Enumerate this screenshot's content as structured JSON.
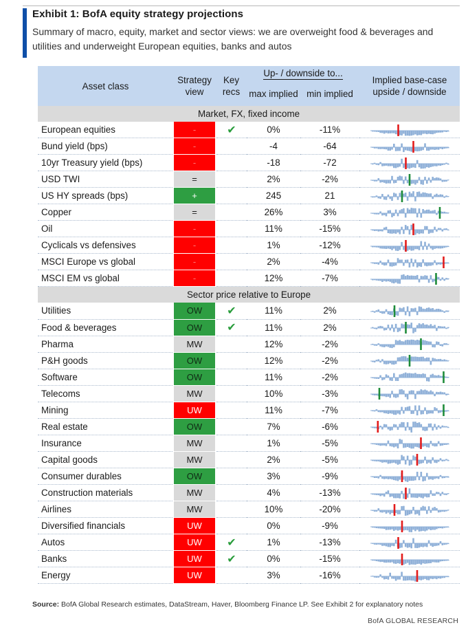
{
  "exhibit": {
    "title": "Exhibit 1: BofA equity strategy projections",
    "subtitle": "Summary of macro, equity, market and sector views: we are overweight food & beverages and utilities and underweight European equities, banks and autos"
  },
  "table": {
    "headers": {
      "asset_class": "Asset class",
      "strategy_view": "Strategy view",
      "key_recs": "Key recs",
      "up_downside": "Up- / downside to...",
      "max_implied": "max implied",
      "min_implied": "min implied",
      "implied_base": "Implied base-case upside / downside"
    },
    "sections": [
      {
        "title": "Market, FX, fixed income",
        "rows": [
          {
            "name": "European equities",
            "view": "-",
            "style": "red",
            "key": "✔",
            "max": "0%",
            "min": "-11%",
            "spark": {
              "up": 0,
              "down": 11,
              "marker": 0.35,
              "tone": "neg"
            }
          },
          {
            "name": "Bund yield (bps)",
            "view": "-",
            "style": "red",
            "key": "",
            "max": "-4",
            "min": "-64",
            "spark": {
              "up": 4,
              "down": 64,
              "marker": 0.55,
              "tone": "neg"
            }
          },
          {
            "name": "10yr Treasury yield (bps)",
            "view": "-",
            "style": "red",
            "key": "",
            "max": "-18",
            "min": "-72",
            "spark": {
              "up": 18,
              "down": 72,
              "marker": 0.45,
              "tone": "neg"
            }
          },
          {
            "name": "USD TWI",
            "view": "=",
            "style": "grey",
            "key": "",
            "max": "2%",
            "min": "-2%",
            "spark": {
              "up": 2,
              "down": 2,
              "marker": 0.5,
              "tone": "pos"
            }
          },
          {
            "name": "US HY spreads (bps)",
            "view": "+",
            "style": "green",
            "key": "",
            "max": "245",
            "min": "21",
            "spark": {
              "up": 245,
              "down": 21,
              "marker": 0.4,
              "tone": "pos"
            }
          },
          {
            "name": "Copper",
            "view": "=",
            "style": "grey",
            "key": "",
            "max": "26%",
            "min": "3%",
            "spark": {
              "up": 26,
              "down": 3,
              "marker": 0.9,
              "tone": "pos"
            }
          },
          {
            "name": "Oil",
            "view": "-",
            "style": "red",
            "key": "",
            "max": "11%",
            "min": "-15%",
            "spark": {
              "up": 11,
              "down": 15,
              "marker": 0.55,
              "tone": "neg"
            }
          },
          {
            "name": "Cyclicals vs defensives",
            "view": "-",
            "style": "red",
            "key": "",
            "max": "1%",
            "min": "-12%",
            "spark": {
              "up": 1,
              "down": 12,
              "marker": 0.45,
              "tone": "neg"
            }
          },
          {
            "name": "MSCI Europe vs global",
            "view": "-",
            "style": "red",
            "key": "",
            "max": "2%",
            "min": "-4%",
            "spark": {
              "up": 2,
              "down": 4,
              "marker": 0.95,
              "tone": "neg"
            }
          },
          {
            "name": "MSCI EM vs global",
            "view": "-",
            "style": "red",
            "key": "",
            "max": "12%",
            "min": "-7%",
            "spark": {
              "up": 12,
              "down": 7,
              "marker": 0.85,
              "tone": "pos"
            }
          }
        ]
      },
      {
        "title": "Sector price relative to Europe",
        "rows": [
          {
            "name": "Utilities",
            "view": "OW",
            "style": "ow",
            "key": "✔",
            "max": "11%",
            "min": "2%",
            "spark": {
              "up": 11,
              "down": 2,
              "marker": 0.3,
              "tone": "pos"
            }
          },
          {
            "name": "Food & beverages",
            "view": "OW",
            "style": "ow",
            "key": "✔",
            "max": "11%",
            "min": "2%",
            "spark": {
              "up": 11,
              "down": 2,
              "marker": 0.45,
              "tone": "pos"
            }
          },
          {
            "name": "Pharma",
            "view": "MW",
            "style": "grey",
            "key": "",
            "max": "12%",
            "min": "-2%",
            "spark": {
              "up": 12,
              "down": 2,
              "marker": 0.65,
              "tone": "pos"
            }
          },
          {
            "name": "P&H goods",
            "view": "OW",
            "style": "ow",
            "key": "",
            "max": "12%",
            "min": "-2%",
            "spark": {
              "up": 12,
              "down": 2,
              "marker": 0.5,
              "tone": "pos"
            }
          },
          {
            "name": "Software",
            "view": "OW",
            "style": "ow",
            "key": "",
            "max": "11%",
            "min": "-2%",
            "spark": {
              "up": 11,
              "down": 2,
              "marker": 0.95,
              "tone": "pos"
            }
          },
          {
            "name": "Telecoms",
            "view": "MW",
            "style": "grey",
            "key": "",
            "max": "10%",
            "min": "-3%",
            "spark": {
              "up": 10,
              "down": 3,
              "marker": 0.1,
              "tone": "pos"
            }
          },
          {
            "name": "Mining",
            "view": "UW",
            "style": "uw",
            "key": "",
            "max": "11%",
            "min": "-7%",
            "spark": {
              "up": 11,
              "down": 7,
              "marker": 0.95,
              "tone": "pos"
            }
          },
          {
            "name": "Real estate",
            "view": "OW",
            "style": "ow",
            "key": "",
            "max": "7%",
            "min": "-6%",
            "spark": {
              "up": 7,
              "down": 6,
              "marker": 0.08,
              "tone": "neg"
            }
          },
          {
            "name": "Insurance",
            "view": "MW",
            "style": "grey",
            "key": "",
            "max": "1%",
            "min": "-5%",
            "spark": {
              "up": 1,
              "down": 5,
              "marker": 0.65,
              "tone": "neg"
            }
          },
          {
            "name": "Capital goods",
            "view": "MW",
            "style": "grey",
            "key": "",
            "max": "2%",
            "min": "-5%",
            "spark": {
              "up": 2,
              "down": 5,
              "marker": 0.6,
              "tone": "neg"
            }
          },
          {
            "name": "Consumer durables",
            "view": "OW",
            "style": "ow",
            "key": "",
            "max": "3%",
            "min": "-9%",
            "spark": {
              "up": 3,
              "down": 9,
              "marker": 0.4,
              "tone": "neg"
            }
          },
          {
            "name": "Construction materials",
            "view": "MW",
            "style": "grey",
            "key": "",
            "max": "4%",
            "min": "-13%",
            "spark": {
              "up": 4,
              "down": 13,
              "marker": 0.45,
              "tone": "neg"
            }
          },
          {
            "name": "Airlines",
            "view": "MW",
            "style": "grey",
            "key": "",
            "max": "10%",
            "min": "-20%",
            "spark": {
              "up": 10,
              "down": 20,
              "marker": 0.3,
              "tone": "neg"
            }
          },
          {
            "name": "Diversified financials",
            "view": "UW",
            "style": "uw",
            "key": "",
            "max": "0%",
            "min": "-9%",
            "spark": {
              "up": 0,
              "down": 9,
              "marker": 0.4,
              "tone": "neg"
            }
          },
          {
            "name": "Autos",
            "view": "UW",
            "style": "uw",
            "key": "✔",
            "max": "1%",
            "min": "-13%",
            "spark": {
              "up": 1,
              "down": 13,
              "marker": 0.35,
              "tone": "neg"
            }
          },
          {
            "name": "Banks",
            "view": "UW",
            "style": "uw",
            "key": "✔",
            "max": "0%",
            "min": "-15%",
            "spark": {
              "up": 0,
              "down": 15,
              "marker": 0.4,
              "tone": "neg"
            }
          },
          {
            "name": "Energy",
            "view": "UW",
            "style": "uw",
            "key": "",
            "max": "3%",
            "min": "-16%",
            "spark": {
              "up": 3,
              "down": 16,
              "marker": 0.6,
              "tone": "neg"
            }
          }
        ]
      }
    ]
  },
  "source": {
    "label": "Source:",
    "text": " BofA Global Research estimates, DataStream, Haver, Bloomberg Finance LP. See Exhibit 2 for explanatory notes"
  },
  "footer": "BofA GLOBAL RESEARCH",
  "colors": {
    "red": "#ff0000",
    "green": "#2e9e42",
    "grey": "#d9d9d9",
    "header": "#c4d7ef",
    "section": "#dadada",
    "spark_fill": "#8fb0d8",
    "marker_pos": "#1e8c3a",
    "marker_neg": "#e31b1b"
  }
}
